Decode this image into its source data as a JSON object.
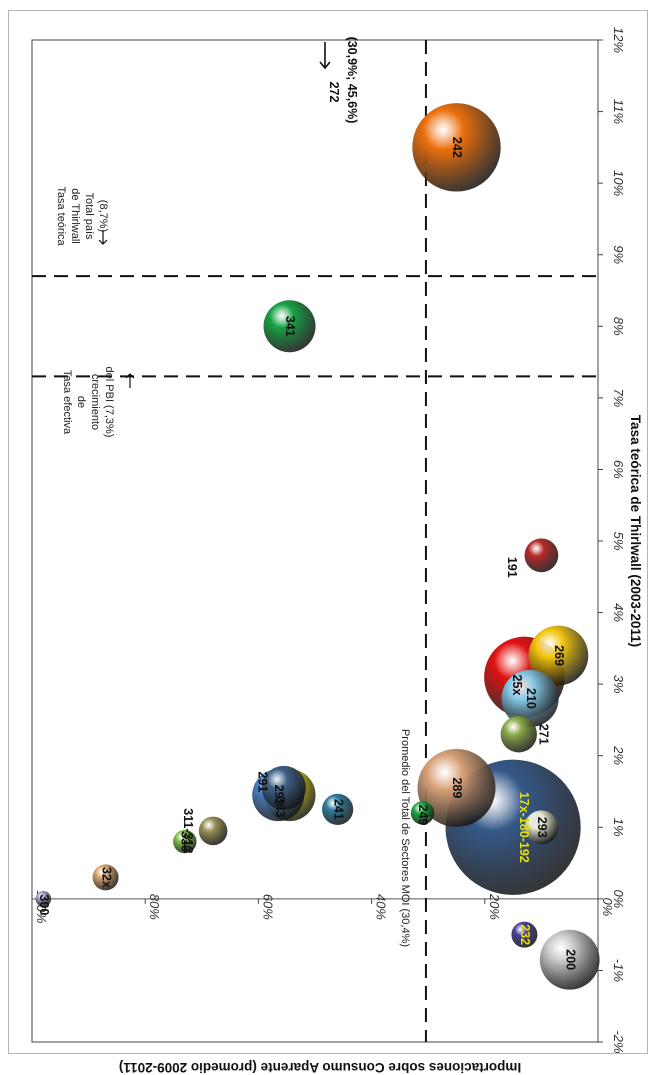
{
  "chart_data": {
    "type": "bubble",
    "xlabel": "Tasa teórica de Thirlwall (2003-2011)",
    "ylabel": "Importaciones sobre Consumo Aparente (promedio 2009-2011)",
    "xlim": [
      -0.02,
      0.12
    ],
    "ylim": [
      0,
      1.0
    ],
    "x_ticks": [
      "-2%",
      "-1%",
      "0%",
      "1%",
      "2%",
      "3%",
      "4%",
      "5%",
      "6%",
      "7%",
      "8%",
      "9%",
      "10%",
      "11%",
      "12%"
    ],
    "y_ticks": [
      "0%",
      "20%",
      "40%",
      "60%",
      "80%",
      "100%"
    ],
    "rotation": "chart rotated 90° clockwise",
    "points": [
      {
        "label": "300",
        "x": 0.0,
        "y": 0.98,
        "size": 6,
        "color": "#a59fc4"
      },
      {
        "label": "32x",
        "x": 0.003,
        "y": 0.87,
        "size": 10,
        "color": "#d8a56e"
      },
      {
        "label": "330",
        "x": 0.008,
        "y": 0.73,
        "size": 9,
        "color": "#7ac043"
      },
      {
        "label": "311-312",
        "x": 0.0095,
        "y": 0.68,
        "size": 11,
        "color": "#9a9055"
      },
      {
        "label": "291",
        "x": 0.0155,
        "y": 0.555,
        "size": 17,
        "color": "#3f5f86"
      },
      {
        "label": "343",
        "x": 0.0145,
        "y": 0.545,
        "size": 20,
        "color": "#e0d80a"
      },
      {
        "label": "292",
        "x": 0.0145,
        "y": 0.565,
        "size": 20,
        "color": "#4a80c4"
      },
      {
        "label": "241",
        "x": 0.0125,
        "y": 0.46,
        "size": 12,
        "color": "#2e7c9c"
      },
      {
        "label": "249",
        "x": 0.012,
        "y": 0.31,
        "size": 9,
        "color": "#19a83f"
      },
      {
        "label": "289",
        "x": 0.0155,
        "y": 0.25,
        "size": 30,
        "color": "#d8a178"
      },
      {
        "label": "17x-180-192",
        "x": 0.01,
        "y": 0.15,
        "size": 52,
        "color": "#35598a"
      },
      {
        "label": "293",
        "x": 0.01,
        "y": 0.1,
        "size": 13,
        "color": "#e9ebd3"
      },
      {
        "label": "271",
        "x": 0.023,
        "y": 0.14,
        "size": 14,
        "color": "#8cac4a"
      },
      {
        "label": "210",
        "x": 0.028,
        "y": 0.12,
        "size": 22,
        "color": "#84c8e4"
      },
      {
        "label": "25x",
        "x": 0.031,
        "y": 0.13,
        "size": 31,
        "color": "#e01212"
      },
      {
        "label": "269",
        "x": 0.034,
        "y": 0.07,
        "size": 23,
        "color": "#f2c50e"
      },
      {
        "label": "191",
        "x": 0.048,
        "y": 0.1,
        "size": 13,
        "color": "#b72a2a"
      },
      {
        "label": "341",
        "x": 0.08,
        "y": 0.545,
        "size": 20,
        "color": "#16a244"
      },
      {
        "label": "242",
        "x": 0.105,
        "y": 0.25,
        "size": 34,
        "color": "#ec6f0d"
      },
      {
        "label": "232",
        "x": -0.005,
        "y": 0.13,
        "size": 10,
        "color": "#4b3f96"
      },
      {
        "label": "200",
        "x": -0.0085,
        "y": 0.05,
        "size": 23,
        "color": "#c8c8c8"
      }
    ],
    "reference_lines": [
      {
        "orientation": "vertical",
        "x": 0.073,
        "text": [
          "Tasa efectiva",
          "de",
          "crecimiento",
          "del PBI (7,3%)"
        ]
      },
      {
        "orientation": "vertical",
        "x": 0.087,
        "text": [
          "Tasa teórica",
          "de Thirlwall",
          "Total país",
          "(8,7%)"
        ]
      },
      {
        "orientation": "horizontal",
        "y": 0.304,
        "text": "Promedio del Total de Sectores MOI (30,4%)"
      }
    ],
    "off_chart": {
      "label": "272",
      "detail": "(30,9%; 45,6%)"
    }
  }
}
